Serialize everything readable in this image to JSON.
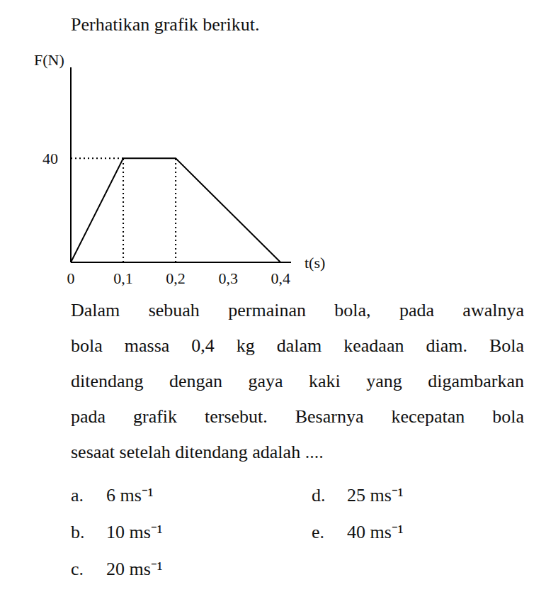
{
  "header": {
    "title": "Perhatikan grafik berikut."
  },
  "chart_data": {
    "type": "line",
    "x_label": "t(s)",
    "y_label": "F(N)",
    "x": [
      0,
      0.1,
      0.2,
      0.4
    ],
    "values": [
      0,
      40,
      40,
      0
    ],
    "color": "#000000",
    "line_style": "solid",
    "marker": "none",
    "grid": false,
    "xlim": [
      0,
      0.42
    ],
    "xticks": [
      0,
      {
        "value": 0.1,
        "label": "0,1"
      },
      {
        "value": 0.2,
        "label": "0,2"
      },
      {
        "value": 0.3,
        "label": "0,3"
      },
      {
        "value": 0.4,
        "label": "0,4"
      }
    ],
    "ylim": [
      0,
      75
    ],
    "yticks": [
      40
    ]
  },
  "question": {
    "lines": [
      "Dalam sebuah permainan bola, pada awalnya",
      "bola massa 0,4 kg dalam keadaan diam. Bola",
      "ditendang dengan gaya kaki yang digambarkan",
      "pada grafik tersebut. Besarnya kecepatan bola",
      "sesaat setelah ditendang adalah ...."
    ]
  },
  "options": [
    {
      "letter": "a.",
      "text": "6 ms⁻¹"
    },
    {
      "letter": "b.",
      "text": "10 ms⁻¹"
    },
    {
      "letter": "c.",
      "text": "20 ms⁻¹"
    },
    {
      "letter": "d.",
      "text": "25 ms⁻¹"
    },
    {
      "letter": "e.",
      "text": "40 ms⁻¹"
    }
  ]
}
